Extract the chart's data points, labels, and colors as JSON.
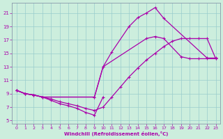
{
  "xlabel": "Windchill (Refroidissement éolien,°C)",
  "background_color": "#cceedd",
  "line_color": "#aa00aa",
  "grid_color": "#99cccc",
  "spine_color": "#8899aa",
  "xlim": [
    -0.5,
    23.5
  ],
  "ylim": [
    4.5,
    22.5
  ],
  "xticks": [
    0,
    1,
    2,
    3,
    4,
    5,
    6,
    7,
    8,
    9,
    10,
    11,
    12,
    13,
    14,
    15,
    16,
    17,
    18,
    19,
    20,
    21,
    22,
    23
  ],
  "yticks": [
    5,
    7,
    9,
    11,
    13,
    15,
    17,
    19,
    21
  ],
  "lines": [
    {
      "x": [
        0,
        1,
        2,
        3,
        9,
        10,
        15,
        16,
        17,
        19,
        20,
        21,
        22,
        23
      ],
      "y": [
        9.5,
        9.0,
        8.8,
        8.5,
        8.5,
        13.0,
        17.2,
        17.5,
        17.2,
        14.5,
        14.2,
        14.2,
        14.2,
        14.2
      ]
    },
    {
      "x": [
        0,
        1,
        2,
        3,
        9,
        10,
        11,
        13,
        14,
        15,
        16,
        17,
        22,
        23
      ],
      "y": [
        9.5,
        9.0,
        8.8,
        8.5,
        8.5,
        13.0,
        15.2,
        19.0,
        20.3,
        21.0,
        21.8,
        20.2,
        14.3,
        14.3
      ]
    },
    {
      "x": [
        0,
        1,
        2,
        3,
        4,
        5,
        6,
        7,
        8,
        9,
        10,
        11,
        12,
        13,
        14,
        15,
        16,
        17,
        18,
        19,
        20,
        21,
        22,
        23
      ],
      "y": [
        9.5,
        9.0,
        8.8,
        8.5,
        8.2,
        7.8,
        7.5,
        7.2,
        6.8,
        6.5,
        7.0,
        8.5,
        10.0,
        11.5,
        12.8,
        14.0,
        15.0,
        16.0,
        16.8,
        17.2,
        17.2,
        17.2,
        17.2,
        14.2
      ]
    },
    {
      "x": [
        0,
        1,
        2,
        3,
        4,
        5,
        6,
        7,
        8,
        9,
        10
      ],
      "y": [
        9.5,
        9.0,
        8.8,
        8.5,
        8.0,
        7.5,
        7.2,
        6.8,
        6.2,
        5.8,
        8.5
      ]
    }
  ]
}
